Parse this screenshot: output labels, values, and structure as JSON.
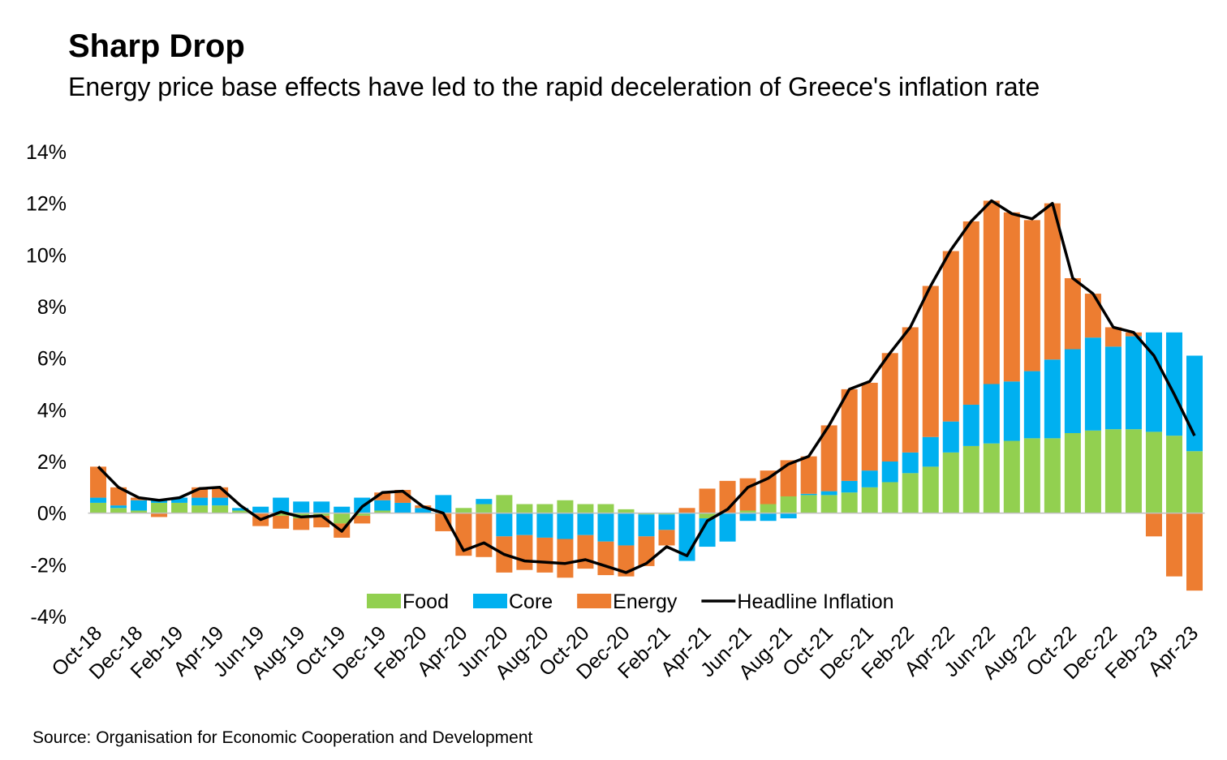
{
  "chart_data": {
    "type": "bar",
    "stacked": true,
    "title": "Sharp Drop",
    "subtitle": "Energy price base effects have led to the rapid deceleration of Greece's inflation rate",
    "source": "Source: Organisation for Economic Cooperation and Development",
    "categories": [
      "Oct-18",
      null,
      "Dec-18",
      null,
      "Feb-19",
      null,
      "Apr-19",
      null,
      "Jun-19",
      null,
      "Aug-19",
      null,
      "Oct-19",
      null,
      "Dec-19",
      null,
      "Feb-20",
      null,
      "Apr-20",
      null,
      "Jun-20",
      null,
      "Aug-20",
      null,
      "Oct-20",
      null,
      "Dec-20",
      null,
      "Feb-21",
      null,
      "Apr-21",
      null,
      "Jun-21",
      null,
      "Aug-21",
      null,
      "Oct-21",
      null,
      "Dec-21",
      null,
      "Feb-22",
      null,
      "Apr-22",
      null,
      "Jun-22",
      null,
      "Aug-22",
      null,
      "Oct-22",
      null,
      "Dec-22",
      null,
      "Feb-23",
      null,
      "Apr-23"
    ],
    "series": [
      {
        "name": "Food",
        "type": "bar",
        "color": "#92d050",
        "values": [
          0.4,
          0.2,
          0.1,
          0.4,
          0.4,
          0.3,
          0.3,
          0.1,
          0,
          -0.1,
          -0.2,
          -0.1,
          -0.4,
          -0.1,
          0.1,
          0,
          0,
          0,
          0.2,
          0.35,
          0.7,
          0.35,
          0.35,
          0.5,
          0.35,
          0.35,
          0.15,
          -0.05,
          -0.05,
          0,
          -0.2,
          0,
          0.1,
          0.35,
          0.65,
          0.7,
          0.7,
          0.8,
          1.0,
          1.2,
          1.55,
          1.8,
          2.35,
          2.6,
          2.7,
          2.8,
          2.9,
          2.9,
          3.1,
          3.2,
          3.25,
          3.25,
          3.15,
          3.0,
          2.4
        ]
      },
      {
        "name": "Core",
        "type": "bar",
        "color": "#00b0f0",
        "values": [
          0.2,
          0.1,
          0.4,
          0.1,
          0.2,
          0.3,
          0.3,
          0.1,
          0.25,
          0.6,
          0.45,
          0.45,
          0.25,
          0.6,
          0.4,
          0.4,
          0.2,
          0.7,
          0,
          0.2,
          -0.9,
          -0.85,
          -0.95,
          -1.0,
          -0.85,
          -1.1,
          -1.25,
          -0.85,
          -0.6,
          -1.85,
          -1.1,
          -1.1,
          -0.3,
          -0.3,
          -0.2,
          0.05,
          0.15,
          0.45,
          0.65,
          0.8,
          0.8,
          1.15,
          1.2,
          1.6,
          2.3,
          2.3,
          2.6,
          3.05,
          3.25,
          3.6,
          3.2,
          3.6,
          3.85,
          4.0,
          3.7
        ]
      },
      {
        "name": "Energy",
        "type": "bar",
        "color": "#ed7d31",
        "values": [
          1.2,
          0.7,
          0.1,
          -0.15,
          0,
          0.4,
          0.4,
          0,
          -0.5,
          -0.5,
          -0.45,
          -0.45,
          -0.55,
          -0.3,
          0.3,
          0.5,
          0.1,
          -0.7,
          -1.65,
          -1.7,
          -1.4,
          -1.35,
          -1.35,
          -1.5,
          -1.3,
          -1.3,
          -1.2,
          -1.15,
          -0.6,
          0.2,
          0.95,
          1.25,
          1.25,
          1.3,
          1.4,
          1.45,
          2.55,
          3.55,
          3.4,
          4.2,
          4.85,
          5.85,
          6.6,
          7.1,
          7.1,
          6.55,
          5.85,
          6.05,
          2.75,
          1.7,
          0.75,
          0.15,
          -0.9,
          -2.45,
          -3.0
        ]
      },
      {
        "name": "Headline Inflation",
        "type": "line",
        "color": "#000000",
        "values": [
          1.8,
          1.0,
          0.6,
          0.5,
          0.6,
          0.95,
          1.0,
          0.3,
          -0.25,
          0.05,
          -0.15,
          -0.1,
          -0.7,
          0.25,
          0.8,
          0.85,
          0.25,
          0.0,
          -1.45,
          -1.15,
          -1.6,
          -1.85,
          -1.9,
          -1.95,
          -1.8,
          -2.05,
          -2.3,
          -1.95,
          -1.3,
          -1.65,
          -0.3,
          0.15,
          1.0,
          1.35,
          1.9,
          2.2,
          3.4,
          4.8,
          5.1,
          6.2,
          7.2,
          8.8,
          10.2,
          11.3,
          12.1,
          11.6,
          11.4,
          12.0,
          9.1,
          8.5,
          7.2,
          7.0,
          6.1,
          4.6,
          3.0
        ]
      }
    ],
    "ylim": [
      -4,
      14
    ],
    "yticks": [
      {
        "value": -4,
        "label": "-4%"
      },
      {
        "value": -2,
        "label": "-2%"
      },
      {
        "value": 0,
        "label": "0%"
      },
      {
        "value": 2,
        "label": "2%"
      },
      {
        "value": 4,
        "label": "4%"
      },
      {
        "value": 6,
        "label": "6%"
      },
      {
        "value": 8,
        "label": "8%"
      },
      {
        "value": 10,
        "label": "10%"
      },
      {
        "value": 12,
        "label": "12%"
      },
      {
        "value": 14,
        "label": "14%"
      }
    ],
    "grid": false,
    "legend": "bottom"
  }
}
